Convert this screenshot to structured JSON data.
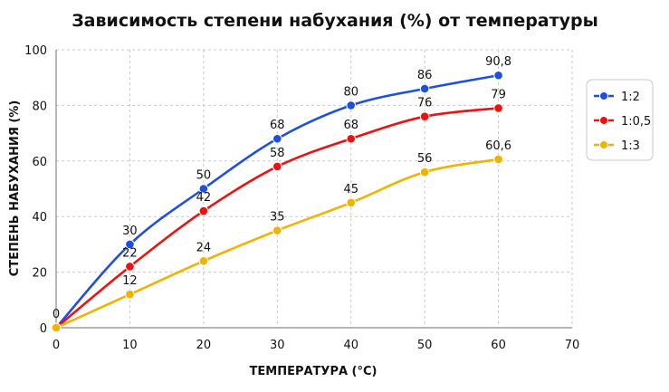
{
  "chart_data": {
    "type": "line",
    "title": "Зависимость степени набухания (%) от температуры",
    "xlabel": "ТЕМПЕРАТУРА (°C)",
    "ylabel": "СТЕПЕНЬ НАБУХАНИЯ (%)",
    "xlim": [
      0,
      70
    ],
    "ylim": [
      0,
      100
    ],
    "x_ticks": [
      "0",
      "10",
      "20",
      "30",
      "40",
      "50",
      "60",
      "70"
    ],
    "y_ticks": [
      "0",
      "20",
      "40",
      "60",
      "80",
      "100"
    ],
    "grid": true,
    "legend_position": "right",
    "x": [
      0,
      10,
      20,
      30,
      40,
      50,
      60
    ],
    "series": [
      {
        "name": "1:2",
        "color": "#1f4fe0",
        "values": [
          0,
          30,
          50,
          68,
          80,
          86,
          90.8
        ],
        "labels": [
          "0",
          "30",
          "50",
          "68",
          "80",
          "86",
          "90,8"
        ]
      },
      {
        "name": "1:0,5",
        "color": "#ee1111",
        "values": [
          0,
          22,
          42,
          58,
          68,
          76,
          79
        ],
        "labels": [
          "",
          "22",
          "42",
          "58",
          "68",
          "76",
          "79"
        ]
      },
      {
        "name": "1:3",
        "color": "#f2b200",
        "values": [
          0,
          12,
          24,
          35,
          45,
          56,
          60.6
        ],
        "labels": [
          "",
          "12",
          "24",
          "35",
          "45",
          "56",
          "60,6"
        ]
      }
    ]
  }
}
